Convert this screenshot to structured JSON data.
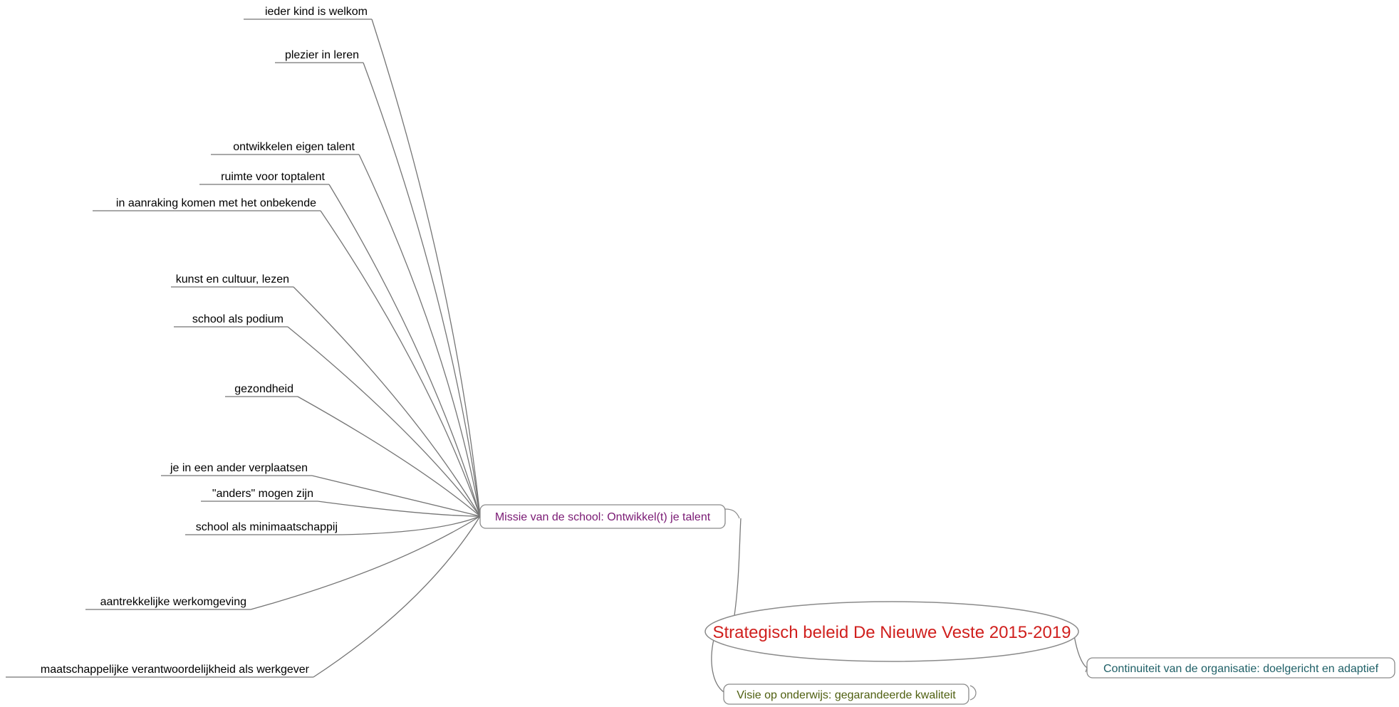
{
  "root": {
    "label": "Strategisch beleid De Nieuwe Veste 2015-2019",
    "color": "#d0201e"
  },
  "topics": [
    {
      "id": "missie",
      "label": "Missie van de school: Ontwikkel(t) je talent",
      "color": "#7a1a74"
    },
    {
      "id": "visie",
      "label": "Visie op onderwijs: gegarandeerde kwaliteit",
      "color": "#4f5f10"
    },
    {
      "id": "continuiteit",
      "label": "Continuiteit van de organisatie: doelgericht en adaptief",
      "color": "#1e5f66"
    }
  ],
  "missie_subtopics": [
    "ieder kind is welkom",
    "plezier in leren",
    "ontwikkelen eigen talent",
    "ruimte voor toptalent",
    "in aanraking komen met het onbekende",
    "kunst en cultuur, lezen",
    "school als podium",
    "gezondheid",
    "je in een ander verplaatsen",
    "\"anders\" mogen zijn",
    "school als minimaatschappij",
    "aantrekkelijke werkomgeving",
    "maatschappelijke verantwoordelijkheid als werkgever"
  ]
}
